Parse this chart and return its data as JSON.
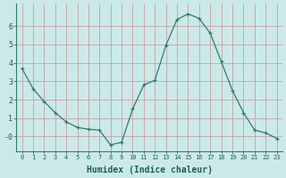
{
  "x": [
    0,
    1,
    2,
    3,
    4,
    5,
    6,
    7,
    8,
    9,
    10,
    11,
    12,
    13,
    14,
    15,
    16,
    17,
    18,
    19,
    20,
    21,
    22,
    23
  ],
  "y": [
    3.7,
    2.6,
    1.9,
    1.3,
    0.8,
    0.5,
    0.4,
    0.35,
    -0.45,
    -0.3,
    1.5,
    2.8,
    3.05,
    4.95,
    6.35,
    6.65,
    6.4,
    5.6,
    4.05,
    2.5,
    1.3,
    0.35,
    0.2,
    -0.1
  ],
  "line_color": "#2e7d6e",
  "marker": "+",
  "bg_color": "#cce9e9",
  "grid_color": "#c8a0a0",
  "xlabel": "Humidex (Indice chaleur)",
  "xlabel_fontsize": 7,
  "tick_fontsize": 6,
  "ylim": [
    -0.8,
    7.2
  ],
  "xlim": [
    -0.5,
    23.5
  ],
  "xtick_labels": [
    "0",
    "1",
    "2",
    "3",
    "4",
    "5",
    "6",
    "7",
    "8",
    "9",
    "10",
    "11",
    "12",
    "13",
    "14",
    "15",
    "16",
    "17",
    "18",
    "19",
    "20",
    "21",
    "22",
    "23"
  ]
}
